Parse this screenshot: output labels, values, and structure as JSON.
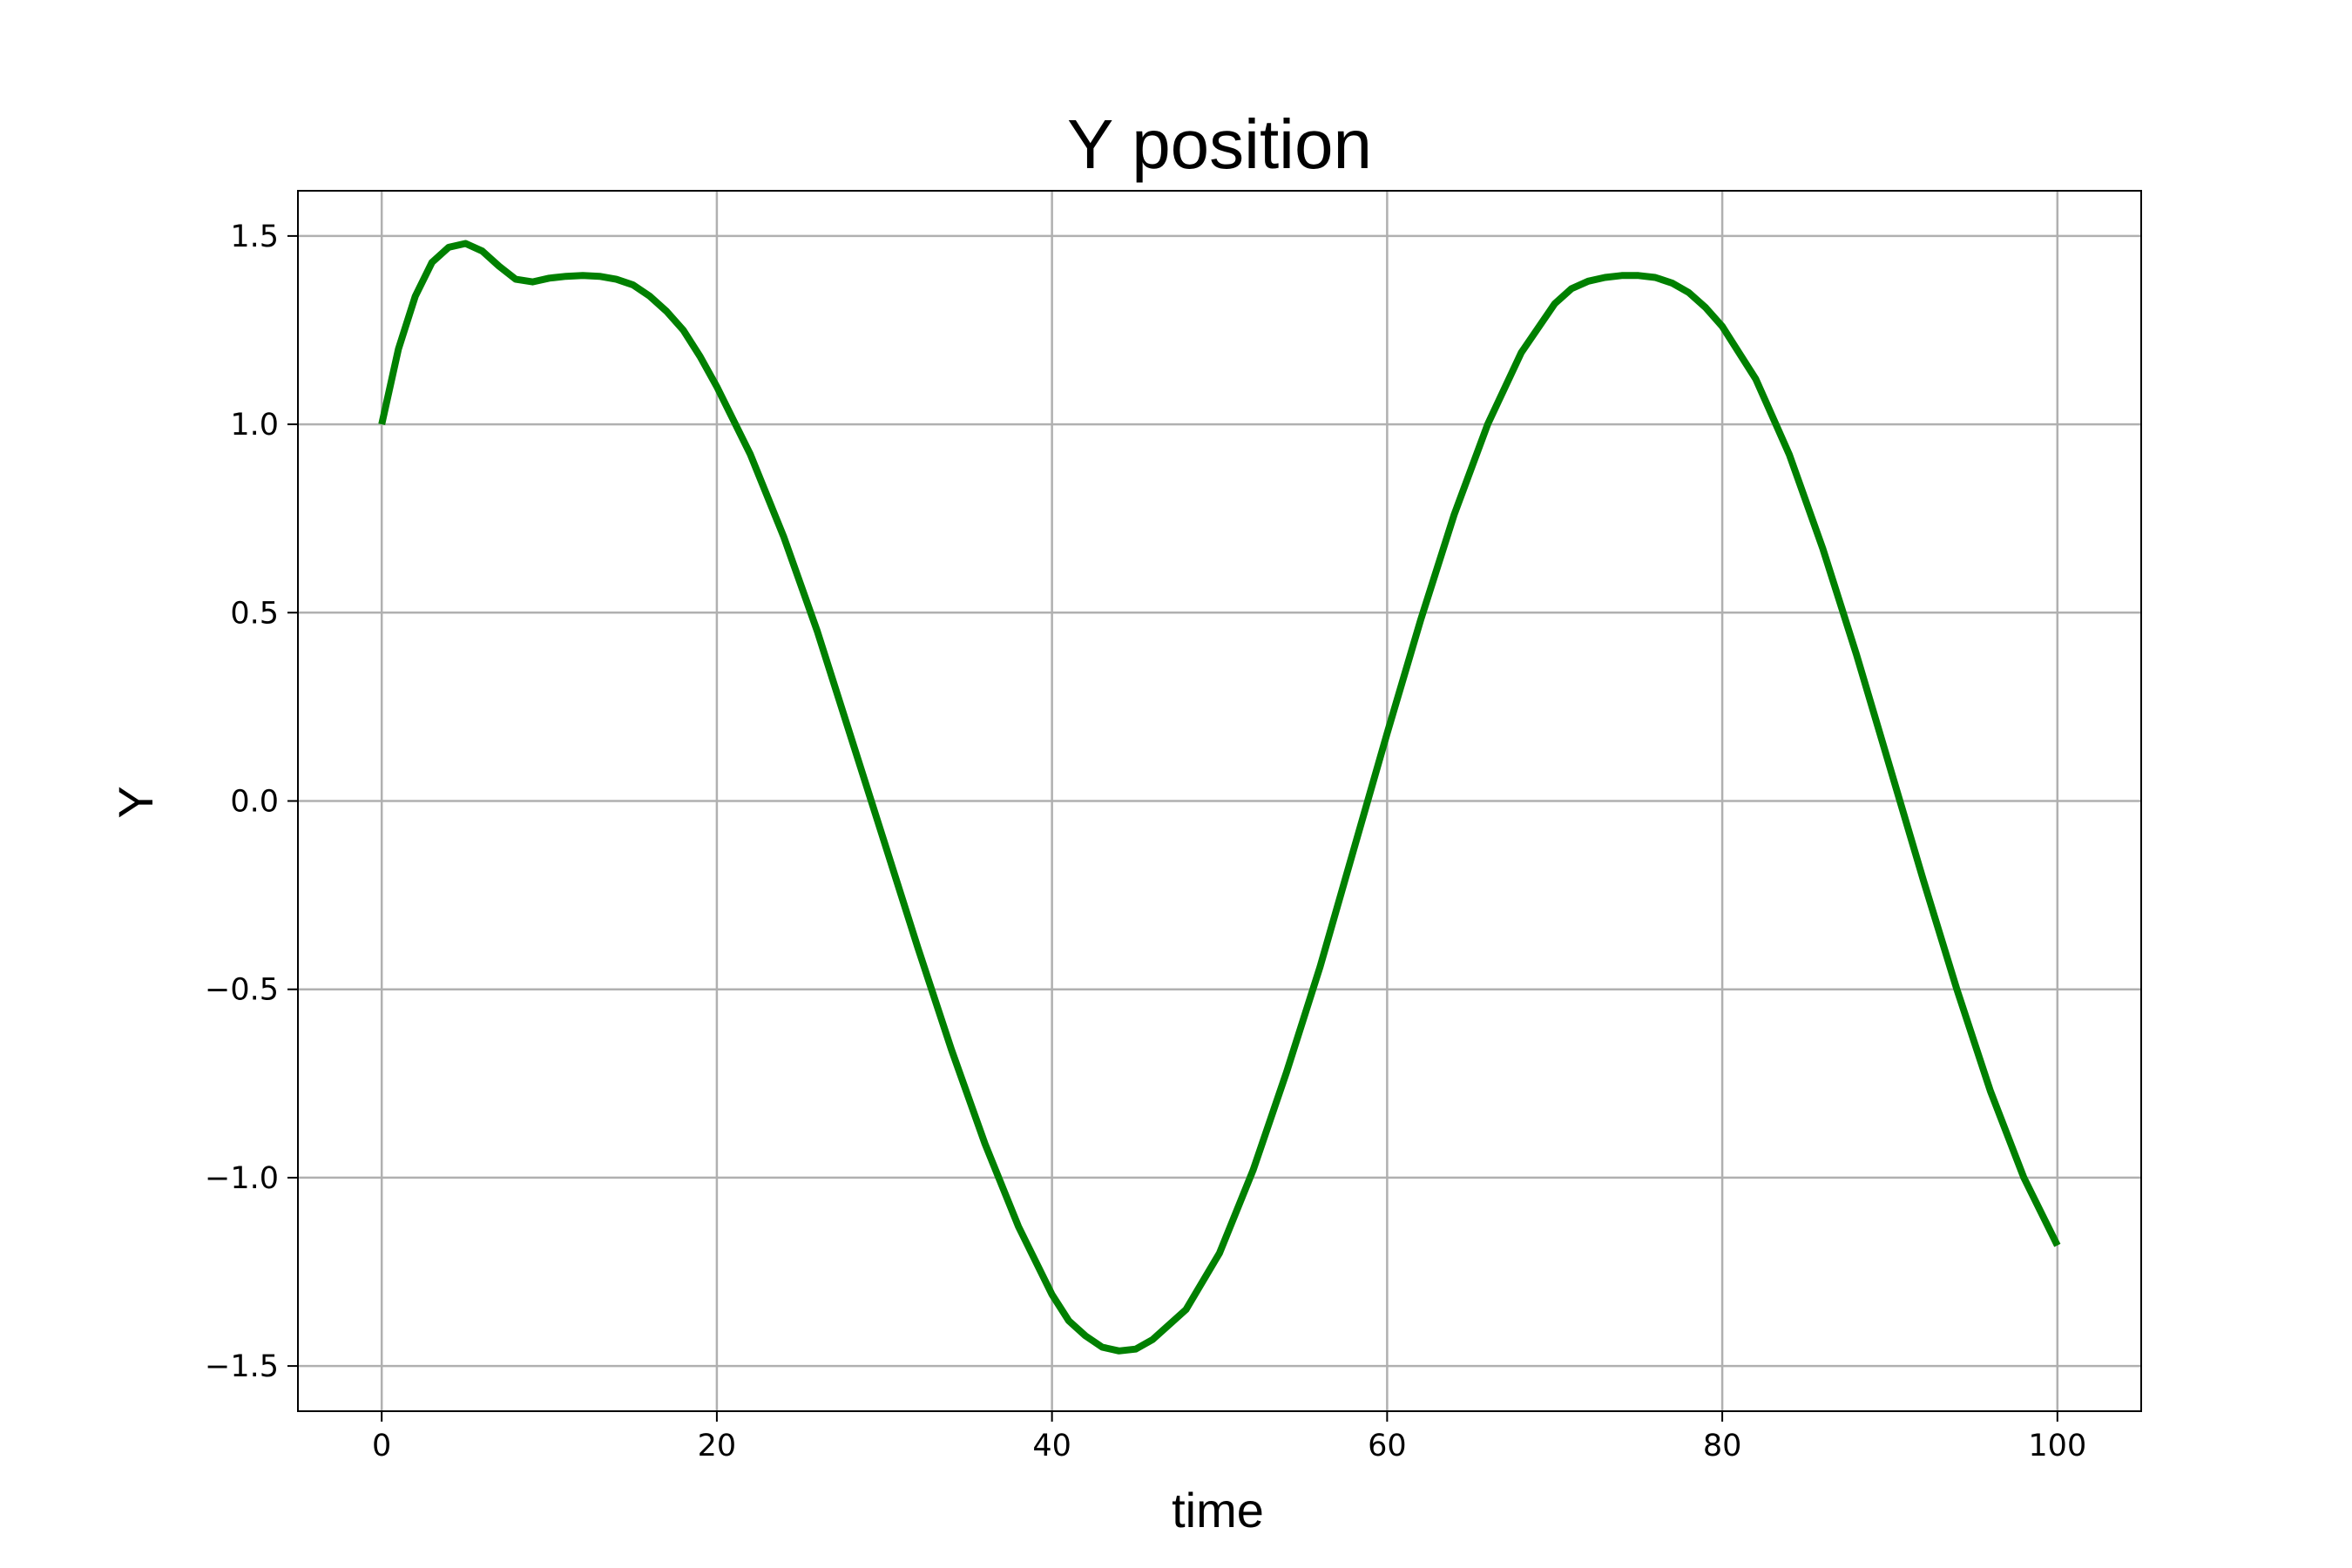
{
  "chart_data": {
    "type": "line",
    "title": "Y position",
    "xlabel": "time",
    "ylabel": "Y",
    "xlim": [
      -5,
      105
    ],
    "ylim": [
      -1.62,
      1.62
    ],
    "xticks": [
      0,
      20,
      40,
      60,
      80,
      100
    ],
    "yticks": [
      -1.5,
      -1.0,
      -0.5,
      0.0,
      0.5,
      1.0,
      1.5
    ],
    "xtick_labels": [
      "0",
      "20",
      "40",
      "60",
      "80",
      "100"
    ],
    "ytick_labels": [
      "−1.5",
      "−1.0",
      "−0.5",
      "0.0",
      "0.5",
      "1.0",
      "1.5"
    ],
    "grid": true,
    "series": [
      {
        "color": "#008000",
        "x": [
          0,
          1,
          2,
          3,
          4,
          5,
          6,
          7,
          8,
          9,
          10,
          11,
          12,
          13,
          14,
          15,
          16,
          17,
          18,
          19,
          20,
          22,
          24,
          26,
          28,
          30,
          32,
          34,
          36,
          38,
          40,
          41,
          42,
          43,
          44,
          45,
          46,
          48,
          50,
          52,
          54,
          56,
          58,
          60,
          62,
          64,
          66,
          68,
          70,
          71,
          72,
          73,
          74,
          75,
          76,
          77,
          78,
          79,
          80,
          82,
          84,
          86,
          88,
          90,
          92,
          94,
          96,
          98,
          100
        ],
        "y": [
          1.0,
          1.2,
          1.34,
          1.43,
          1.47,
          1.48,
          1.46,
          1.42,
          1.385,
          1.378,
          1.388,
          1.393,
          1.395,
          1.393,
          1.385,
          1.37,
          1.34,
          1.3,
          1.25,
          1.18,
          1.1,
          0.92,
          0.7,
          0.45,
          0.17,
          -0.11,
          -0.39,
          -0.66,
          -0.91,
          -1.13,
          -1.31,
          -1.38,
          -1.42,
          -1.45,
          -1.46,
          -1.455,
          -1.43,
          -1.35,
          -1.2,
          -0.98,
          -0.72,
          -0.44,
          -0.13,
          0.18,
          0.48,
          0.76,
          1.0,
          1.19,
          1.32,
          1.36,
          1.38,
          1.39,
          1.395,
          1.395,
          1.39,
          1.375,
          1.35,
          1.31,
          1.26,
          1.12,
          0.92,
          0.67,
          0.39,
          0.09,
          -0.21,
          -0.5,
          -0.77,
          -1.0,
          -1.18
        ]
      }
    ]
  }
}
